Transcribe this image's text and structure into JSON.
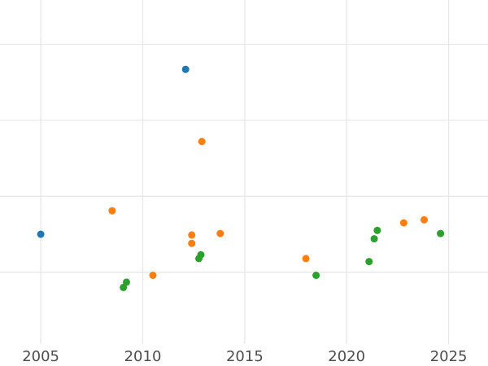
{
  "chart_data": {
    "type": "scatter",
    "title": "",
    "xlabel": "",
    "ylabel": "",
    "x_ticks": [
      2005,
      2010,
      2015,
      2020,
      2025
    ],
    "x_tick_labels": [
      "2005",
      "2010",
      "2015",
      "2020",
      "2025"
    ],
    "y_gridline_values": [
      1,
      2,
      3,
      4
    ],
    "y_tick_labels": [],
    "x_range": [
      2003.0,
      2026.93
    ],
    "y_range": [
      -0.234,
      4.583
    ],
    "grid": true,
    "legend_position": "none",
    "y_unit_note": "y axis has no visible tick labels; y values are expressed in unlabeled gridline units (1 unit per horizontal gridline, 0 at extrapolated baseline)",
    "marker_diameter_px": 9,
    "colors": {
      "background": "#ffffff",
      "gridline": "#e8e8e8",
      "tick_label": "#4d4d4d",
      "series_blue": "#1f77b4",
      "series_orange": "#ff7f0e",
      "series_green": "#2ca02c"
    },
    "series": [
      {
        "name": "blue",
        "color": "#1f77b4",
        "points": [
          [
            2005.0,
            1.5
          ],
          [
            2012.1,
            3.67
          ]
        ]
      },
      {
        "name": "orange",
        "color": "#ff7f0e",
        "points": [
          [
            2008.5,
            1.81
          ],
          [
            2010.5,
            0.96
          ],
          [
            2012.4,
            1.49
          ],
          [
            2012.4,
            1.38
          ],
          [
            2012.9,
            2.72
          ],
          [
            2013.8,
            1.51
          ],
          [
            2018.0,
            1.18
          ],
          [
            2022.8,
            1.65
          ],
          [
            2023.8,
            1.69
          ]
        ]
      },
      {
        "name": "green",
        "color": "#2ca02c",
        "points": [
          [
            2009.05,
            0.8
          ],
          [
            2009.2,
            0.87
          ],
          [
            2012.75,
            1.18
          ],
          [
            2012.85,
            1.23
          ],
          [
            2018.5,
            0.96
          ],
          [
            2021.1,
            1.14
          ],
          [
            2021.35,
            1.44
          ],
          [
            2021.5,
            1.55
          ],
          [
            2024.6,
            1.51
          ]
        ]
      }
    ]
  }
}
